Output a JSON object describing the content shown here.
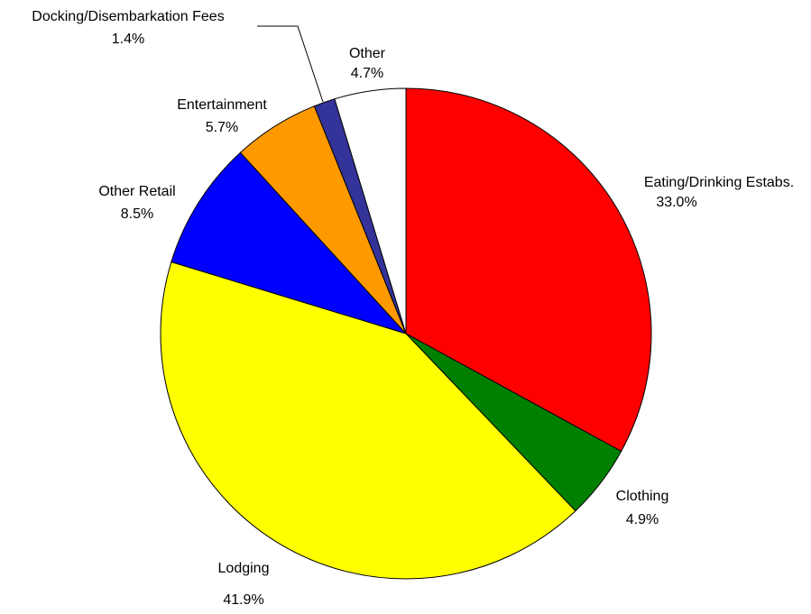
{
  "chart_data": {
    "type": "pie",
    "categories": [
      "Eating/Drinking Estabs.",
      "Clothing",
      "Lodging",
      "Other Retail",
      "Entertainment",
      "Docking/Disembarkation Fees",
      "Other"
    ],
    "values": [
      33.0,
      4.9,
      41.9,
      8.5,
      5.7,
      1.4,
      4.7
    ],
    "value_labels": [
      "33.0%",
      "4.9%",
      "41.9%",
      "8.5%",
      "5.7%",
      "1.4%",
      "4.7%"
    ],
    "colors": [
      "#ff0000",
      "#008000",
      "#ffff00",
      "#0000ff",
      "#ff9900",
      "#333399",
      "#ffffff"
    ]
  }
}
